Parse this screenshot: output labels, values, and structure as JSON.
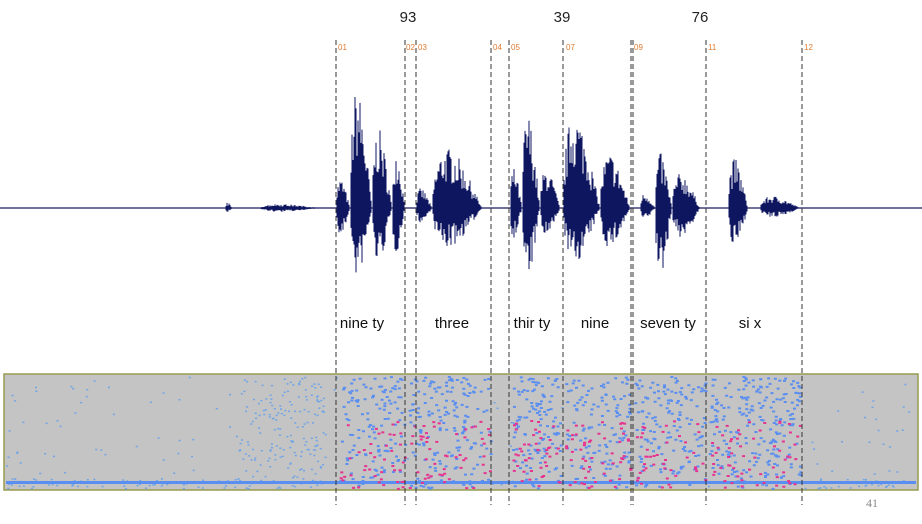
{
  "numbers": [
    "93",
    "39",
    "76"
  ],
  "markers": [
    "01",
    "02",
    "03",
    "04",
    "05",
    "07",
    "09",
    "11",
    "12"
  ],
  "words": [
    "nine ty",
    "three",
    "thir ty",
    "nine",
    "seven ty",
    "si  x"
  ],
  "page_number": "41"
}
